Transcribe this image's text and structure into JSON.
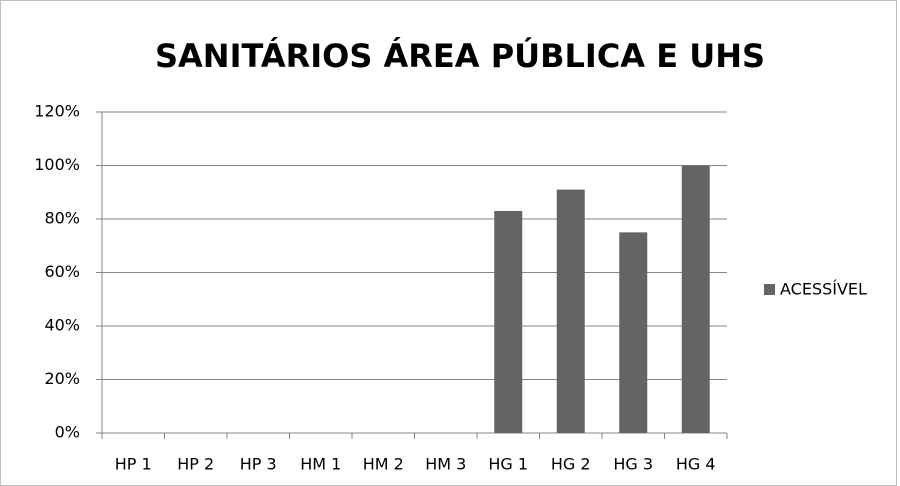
{
  "chart_data": {
    "type": "bar",
    "title": "SANITÁRIOS ÁREA PÚBLICA  E UHS",
    "categories": [
      "HP 1",
      "HP 2",
      "HP 3",
      "HM 1",
      "HM 2",
      "HM 3",
      "HG 1",
      "HG 2",
      "HG 3",
      "HG 4"
    ],
    "series": [
      {
        "name": "ACESSÍVEL",
        "color": "#646464",
        "values": [
          0,
          0,
          0,
          0,
          0,
          0,
          83,
          91,
          75,
          100
        ]
      }
    ],
    "ylim": [
      0,
      120
    ],
    "yticks": [
      {
        "value": 0,
        "label": "0%"
      },
      {
        "value": 20,
        "label": "20%"
      },
      {
        "value": 40,
        "label": "40%"
      },
      {
        "value": 60,
        "label": "60%"
      },
      {
        "value": 80,
        "label": "80%"
      },
      {
        "value": 100,
        "label": "100%"
      },
      {
        "value": 120,
        "label": "120%"
      }
    ],
    "grid": true,
    "legend": "right"
  }
}
